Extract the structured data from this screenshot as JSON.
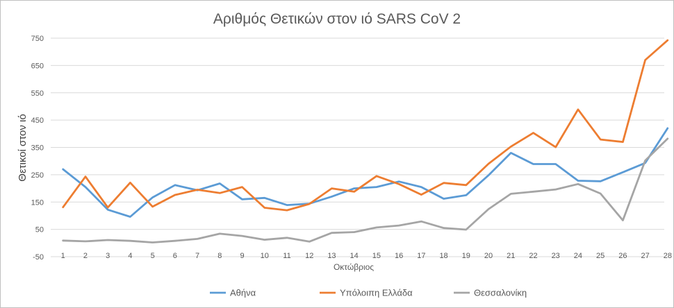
{
  "chart_data": {
    "type": "line",
    "title": "Αριθμός Θετικών στον ιό SARS CoV 2",
    "xlabel": "Οκτώβριος",
    "ylabel": "Θετικοί στον ιό",
    "x": [
      1,
      2,
      3,
      4,
      5,
      6,
      7,
      8,
      9,
      10,
      11,
      12,
      13,
      14,
      15,
      16,
      17,
      18,
      19,
      20,
      21,
      22,
      23,
      24,
      25,
      26,
      27,
      28
    ],
    "ylim": [
      -50,
      750
    ],
    "yticks": [
      -50,
      50,
      150,
      250,
      350,
      450,
      550,
      650,
      750
    ],
    "grid": true,
    "legend": "bottom",
    "series": [
      {
        "name": "Αθήνα",
        "color": "#5b9bd5",
        "values": [
          270,
          205,
          122,
          96,
          167,
          212,
          193,
          218,
          160,
          165,
          139,
          144,
          170,
          200,
          205,
          225,
          205,
          162,
          175,
          248,
          330,
          289,
          289,
          228,
          226,
          259,
          293,
          420
        ]
      },
      {
        "name": "Υπόλοιπη Ελλάδα",
        "color": "#ed7d31",
        "values": [
          131,
          243,
          130,
          221,
          133,
          176,
          195,
          183,
          205,
          129,
          120,
          143,
          200,
          188,
          245,
          216,
          177,
          220,
          212,
          290,
          353,
          403,
          351,
          489,
          379,
          370,
          670,
          742
        ]
      },
      {
        "name": "Θεσσαλονίκη",
        "color": "#a5a5a5",
        "values": [
          9,
          6,
          11,
          8,
          2,
          8,
          15,
          34,
          26,
          12,
          19,
          5,
          37,
          40,
          57,
          64,
          79,
          55,
          49,
          124,
          180,
          188,
          196,
          216,
          181,
          83,
          302,
          382
        ]
      }
    ]
  }
}
